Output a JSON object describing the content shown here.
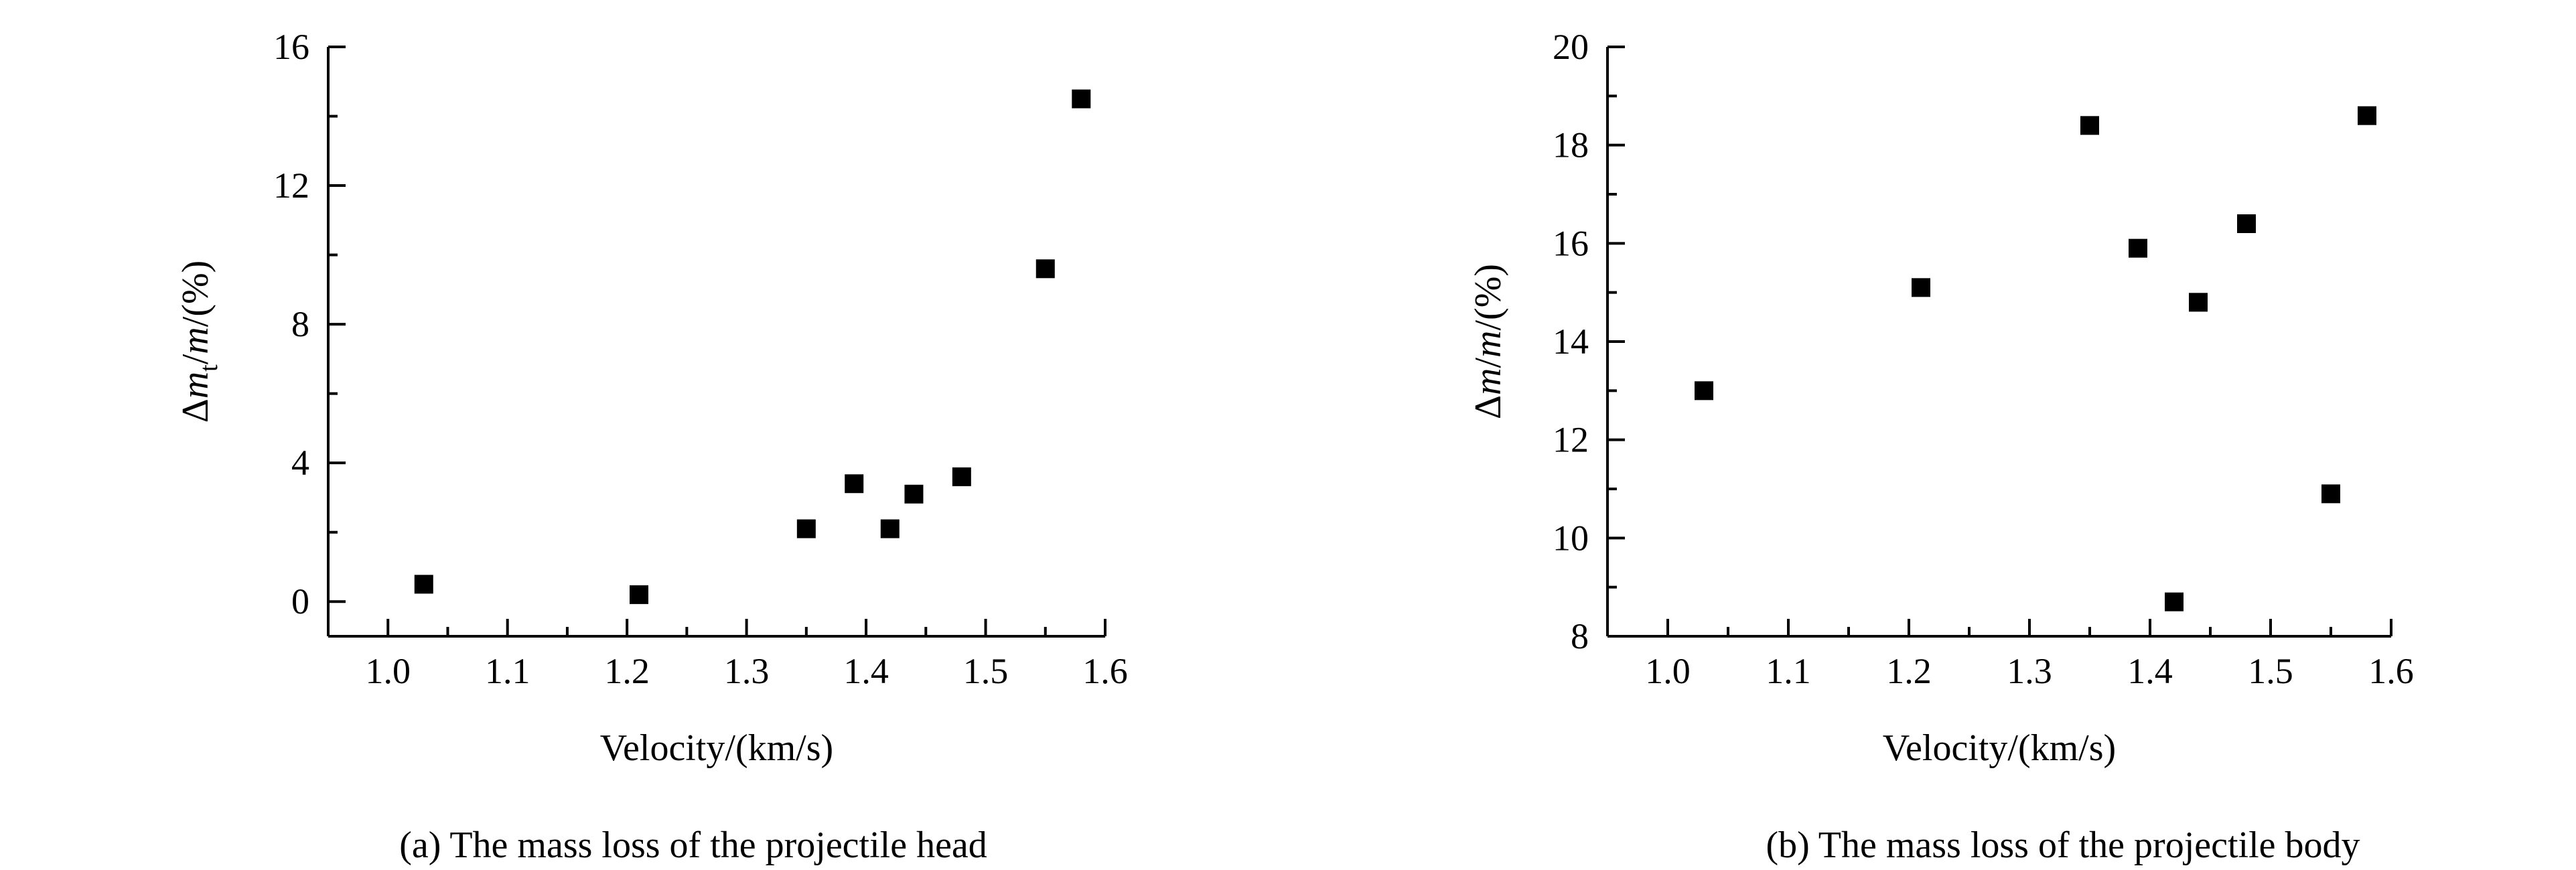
{
  "chart_data": [
    {
      "type": "scatter",
      "caption": "(a) The mass loss of the projectile head",
      "xlabel": "Velocity/(km/s)",
      "ylabel": {
        "prefix": "Δ",
        "var1": "m",
        "sub": "t",
        "sep": "/",
        "var2": "m",
        "suffix": "/(%)"
      },
      "xlim": [
        0.95,
        1.6
      ],
      "ylim": [
        -1,
        16
      ],
      "xticks": [
        1.0,
        1.1,
        1.2,
        1.3,
        1.4,
        1.5,
        1.6
      ],
      "xtick_labels": [
        "1.0",
        "1.1",
        "1.2",
        "1.3",
        "1.4",
        "1.5",
        "1.6"
      ],
      "yticks": [
        0,
        4,
        8,
        12,
        16
      ],
      "ytick_labels": [
        "0",
        "4",
        "8",
        "12",
        "16"
      ],
      "marker": "square",
      "x": [
        1.03,
        1.21,
        1.35,
        1.39,
        1.42,
        1.44,
        1.48,
        1.55,
        1.58
      ],
      "y": [
        0.5,
        0.2,
        2.1,
        3.4,
        2.1,
        3.1,
        3.6,
        9.6,
        14.5
      ]
    },
    {
      "type": "scatter",
      "caption": "(b) The mass loss of the projectile body",
      "xlabel": "Velocity/(km/s)",
      "ylabel": {
        "prefix": "Δ",
        "var1": "m",
        "sub": "",
        "sep": "/",
        "var2": "m",
        "suffix": "/(%)"
      },
      "xlim": [
        0.95,
        1.6
      ],
      "ylim": [
        8,
        20
      ],
      "xticks": [
        1.0,
        1.1,
        1.2,
        1.3,
        1.4,
        1.5,
        1.6
      ],
      "xtick_labels": [
        "1.0",
        "1.1",
        "1.2",
        "1.3",
        "1.4",
        "1.5",
        "1.6"
      ],
      "yticks": [
        8,
        10,
        12,
        14,
        16,
        18,
        20
      ],
      "ytick_labels": [
        "8",
        "10",
        "12",
        "14",
        "16",
        "18",
        "20"
      ],
      "marker": "square",
      "x": [
        1.03,
        1.21,
        1.35,
        1.39,
        1.42,
        1.44,
        1.48,
        1.55,
        1.58
      ],
      "y": [
        13.0,
        15.1,
        18.4,
        15.9,
        8.7,
        14.8,
        16.4,
        10.9,
        18.6
      ]
    }
  ]
}
